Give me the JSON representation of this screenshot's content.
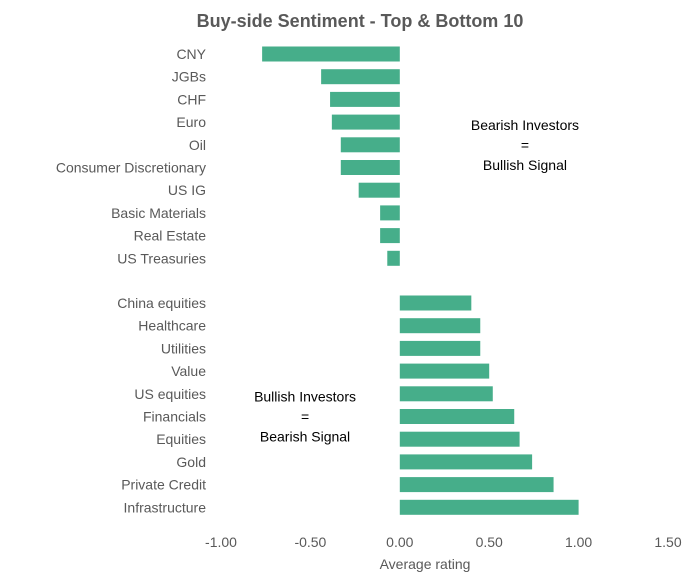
{
  "chart_data": {
    "type": "bar",
    "orientation": "horizontal",
    "title": "Buy-side Sentiment - Top & Bottom 10",
    "xlabel": "Average rating",
    "ylabel": "",
    "xlim": [
      -1.0,
      1.5
    ],
    "xticks": [
      "-1.00",
      "-0.50",
      "0.00",
      "0.50",
      "1.00",
      "1.50"
    ],
    "grid": false,
    "legend": "none",
    "bar_color": "#46AE8A",
    "groups": [
      {
        "categories": [
          "CNY",
          "JGBs",
          "CHF",
          "Euro",
          "Oil",
          "Consumer Discretionary",
          "US IG",
          "Basic Materials",
          "Real Estate",
          "US Treasuries"
        ],
        "values": [
          -0.77,
          -0.44,
          -0.39,
          -0.38,
          -0.33,
          -0.33,
          -0.23,
          -0.11,
          -0.11,
          -0.07
        ]
      },
      {
        "categories": [
          "China equities",
          "Healthcare",
          "Utilities",
          "Value",
          "US equities",
          "Financials",
          "Equities",
          "Gold",
          "Private Credit",
          "Infrastructure"
        ],
        "values": [
          0.4,
          0.45,
          0.45,
          0.5,
          0.52,
          0.64,
          0.67,
          0.74,
          0.86,
          1.0
        ]
      }
    ],
    "annotations": [
      {
        "lines": [
          "Bearish Investors",
          "=",
          "Bullish Signal"
        ],
        "x": 0.7,
        "y_group": 0,
        "y_index": 4
      },
      {
        "lines": [
          "Bullish Investors",
          "=",
          "Bearish Signal"
        ],
        "x": -0.53,
        "y_group": 1,
        "y_index": 5
      }
    ]
  }
}
